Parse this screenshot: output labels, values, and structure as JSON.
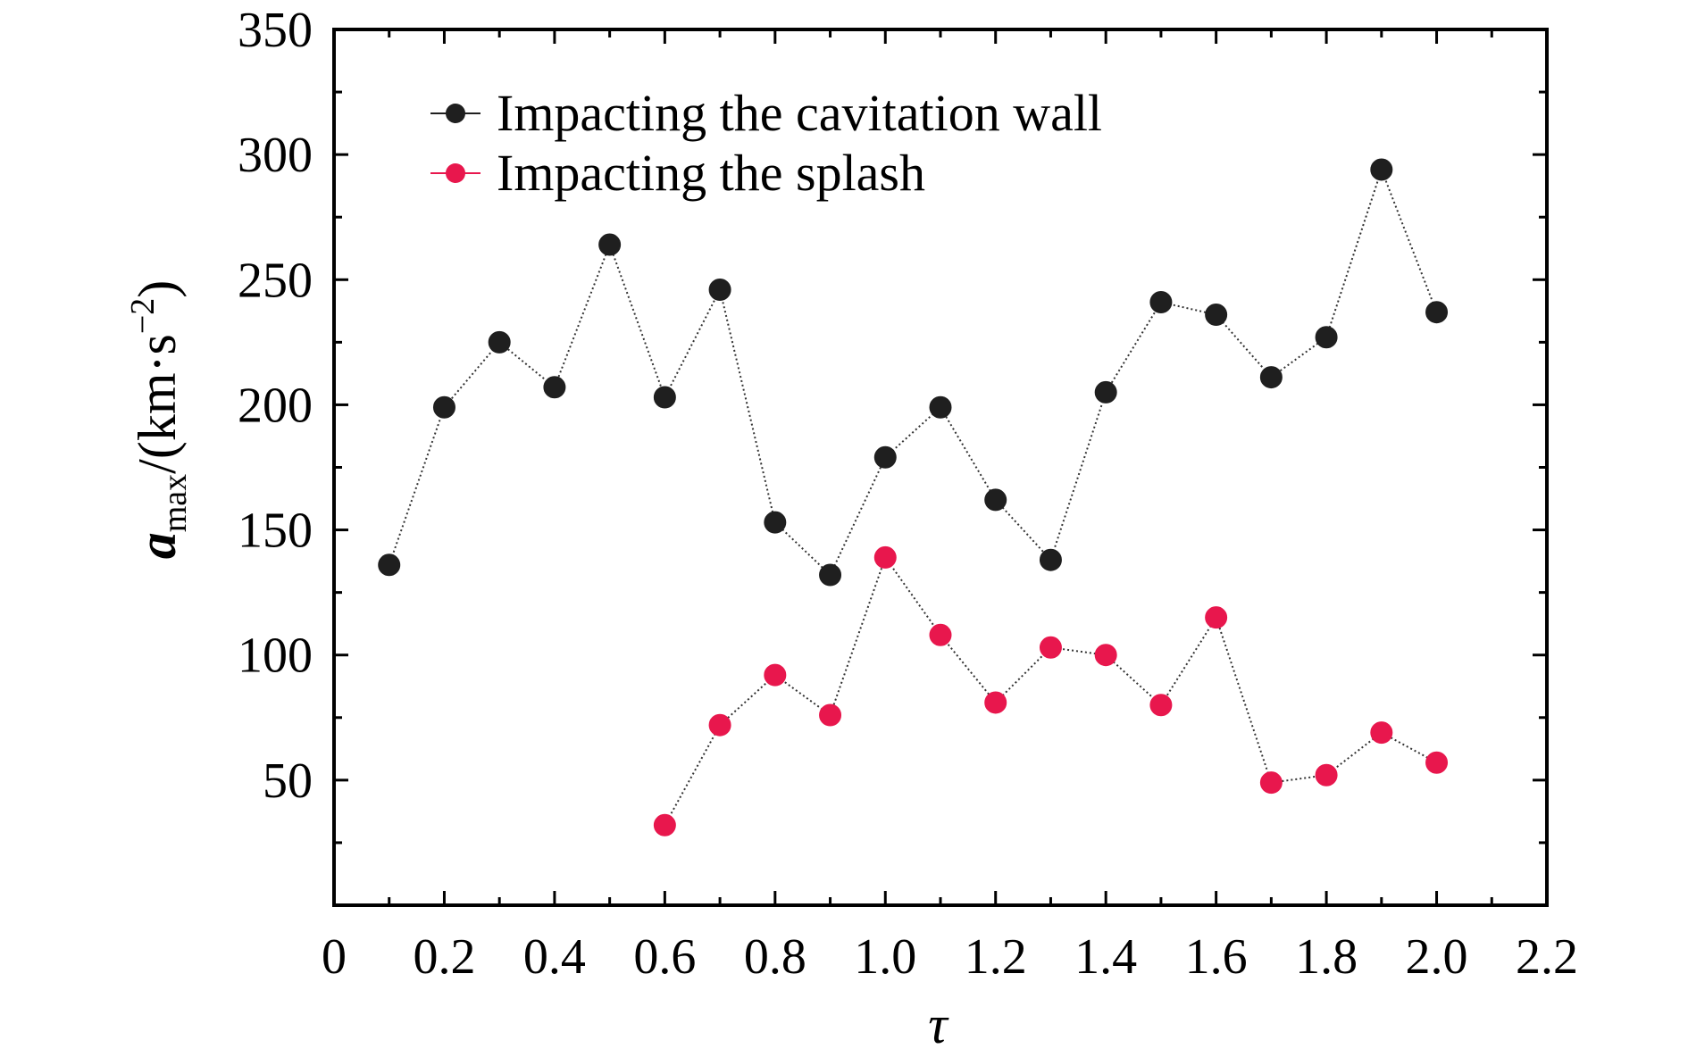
{
  "chart_data": {
    "type": "line",
    "xlabel": "τ",
    "ylabel": {
      "base": "a",
      "subscript": "max",
      "unit_open": "/(km·s",
      "unit_exp": "−2",
      "unit_close": ")"
    },
    "xlim": [
      0,
      2.2
    ],
    "ylim": [
      0,
      350
    ],
    "x_ticks": [
      "0",
      "0.2",
      "0.4",
      "0.6",
      "0.8",
      "1.0",
      "1.2",
      "1.4",
      "1.6",
      "1.8",
      "2.0",
      "2.2"
    ],
    "y_ticks": [
      "50",
      "100",
      "150",
      "200",
      "250",
      "300",
      "350"
    ],
    "x_tick_values": [
      0,
      0.2,
      0.4,
      0.6,
      0.8,
      1.0,
      1.2,
      1.4,
      1.6,
      1.8,
      2.0,
      2.2
    ],
    "y_tick_values": [
      50,
      100,
      150,
      200,
      250,
      300,
      350
    ],
    "grid": false,
    "legend_position": "top-left",
    "series": [
      {
        "name": "Impacting the cavitation wall",
        "color": "#1f1f1f",
        "x": [
          0.1,
          0.2,
          0.3,
          0.4,
          0.5,
          0.6,
          0.7,
          0.8,
          0.9,
          1.0,
          1.1,
          1.2,
          1.3,
          1.4,
          1.5,
          1.6,
          1.7,
          1.8,
          1.9,
          2.0
        ],
        "y": [
          136,
          199,
          225,
          207,
          264,
          203,
          246,
          153,
          132,
          179,
          199,
          162,
          138,
          205,
          241,
          236,
          211,
          227,
          294,
          237
        ]
      },
      {
        "name": "Impacting the splash",
        "color": "#e8174d",
        "x": [
          0.6,
          0.7,
          0.8,
          0.9,
          1.0,
          1.1,
          1.2,
          1.3,
          1.4,
          1.5,
          1.6,
          1.7,
          1.8,
          1.9,
          2.0
        ],
        "y": [
          32,
          72,
          92,
          76,
          139,
          108,
          81,
          103,
          100,
          80,
          115,
          49,
          52,
          69,
          57
        ]
      }
    ]
  }
}
